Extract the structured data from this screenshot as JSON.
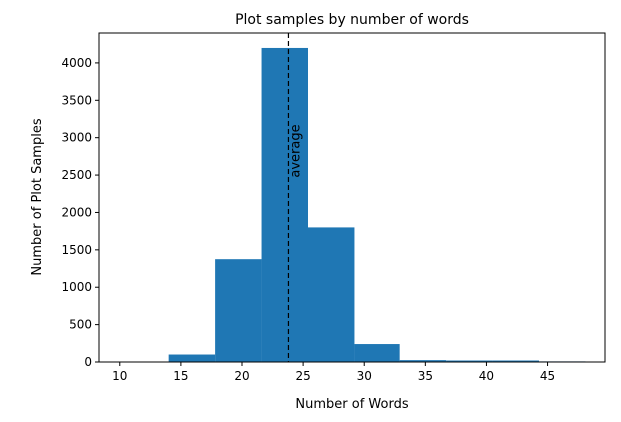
{
  "chart_data": {
    "type": "bar",
    "title": "Plot samples by number of words",
    "xlabel": "Number of Words",
    "ylabel": "Number of Plot Samples",
    "xlim": [
      8.3,
      49.7
    ],
    "ylim": [
      0,
      4400
    ],
    "grid": false,
    "bar_color": "#1f77b4",
    "bins": [
      {
        "start": 14.0,
        "end": 17.8,
        "value": 100
      },
      {
        "start": 17.8,
        "end": 21.6,
        "value": 1375
      },
      {
        "start": 21.6,
        "end": 25.4,
        "value": 4200
      },
      {
        "start": 25.4,
        "end": 29.2,
        "value": 1800
      },
      {
        "start": 29.2,
        "end": 32.9,
        "value": 240
      },
      {
        "start": 32.9,
        "end": 36.7,
        "value": 25
      },
      {
        "start": 36.7,
        "end": 40.5,
        "value": 20
      },
      {
        "start": 40.5,
        "end": 44.3,
        "value": 20
      },
      {
        "start": 44.3,
        "end": 48.1,
        "value": 8
      }
    ],
    "xticks": [
      10,
      15,
      20,
      25,
      30,
      35,
      40,
      45
    ],
    "xtick_labels": [
      "10",
      "15",
      "20",
      "25",
      "30",
      "35",
      "40",
      "45"
    ],
    "yticks": [
      0,
      500,
      1000,
      1500,
      2000,
      2500,
      3000,
      3500,
      4000
    ],
    "ytick_labels": [
      "0",
      "500",
      "1000",
      "1500",
      "2000",
      "2500",
      "3000",
      "3500",
      "4000"
    ],
    "average_line": {
      "x": 23.8,
      "label": "average",
      "style": "dashed",
      "color": "#000000"
    }
  }
}
